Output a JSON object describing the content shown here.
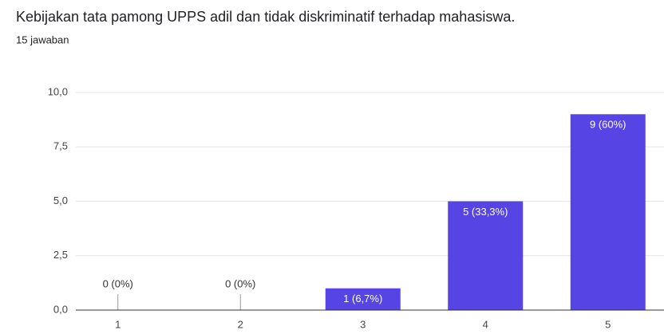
{
  "chart_data": {
    "type": "bar",
    "title": "Kebijakan tata pamong UPPS adil dan tidak diskriminatif terhadap mahasiswa.",
    "subtitle": "15 jawaban",
    "categories": [
      "1",
      "2",
      "3",
      "4",
      "5"
    ],
    "values": [
      0,
      0,
      1,
      5,
      9
    ],
    "value_labels": [
      "0 (0%)",
      "0 (0%)",
      "1 (6,7%)",
      "5 (33,3%)",
      "9 (60%)"
    ],
    "color": "#5744e4",
    "ylim": [
      0,
      10
    ],
    "yticks": [
      {
        "value": 0,
        "label": "0,0"
      },
      {
        "value": 2.5,
        "label": "2,5"
      },
      {
        "value": 5,
        "label": "5,0"
      },
      {
        "value": 7.5,
        "label": "7,5"
      },
      {
        "value": 10,
        "label": "10,0"
      }
    ],
    "grid": true
  }
}
